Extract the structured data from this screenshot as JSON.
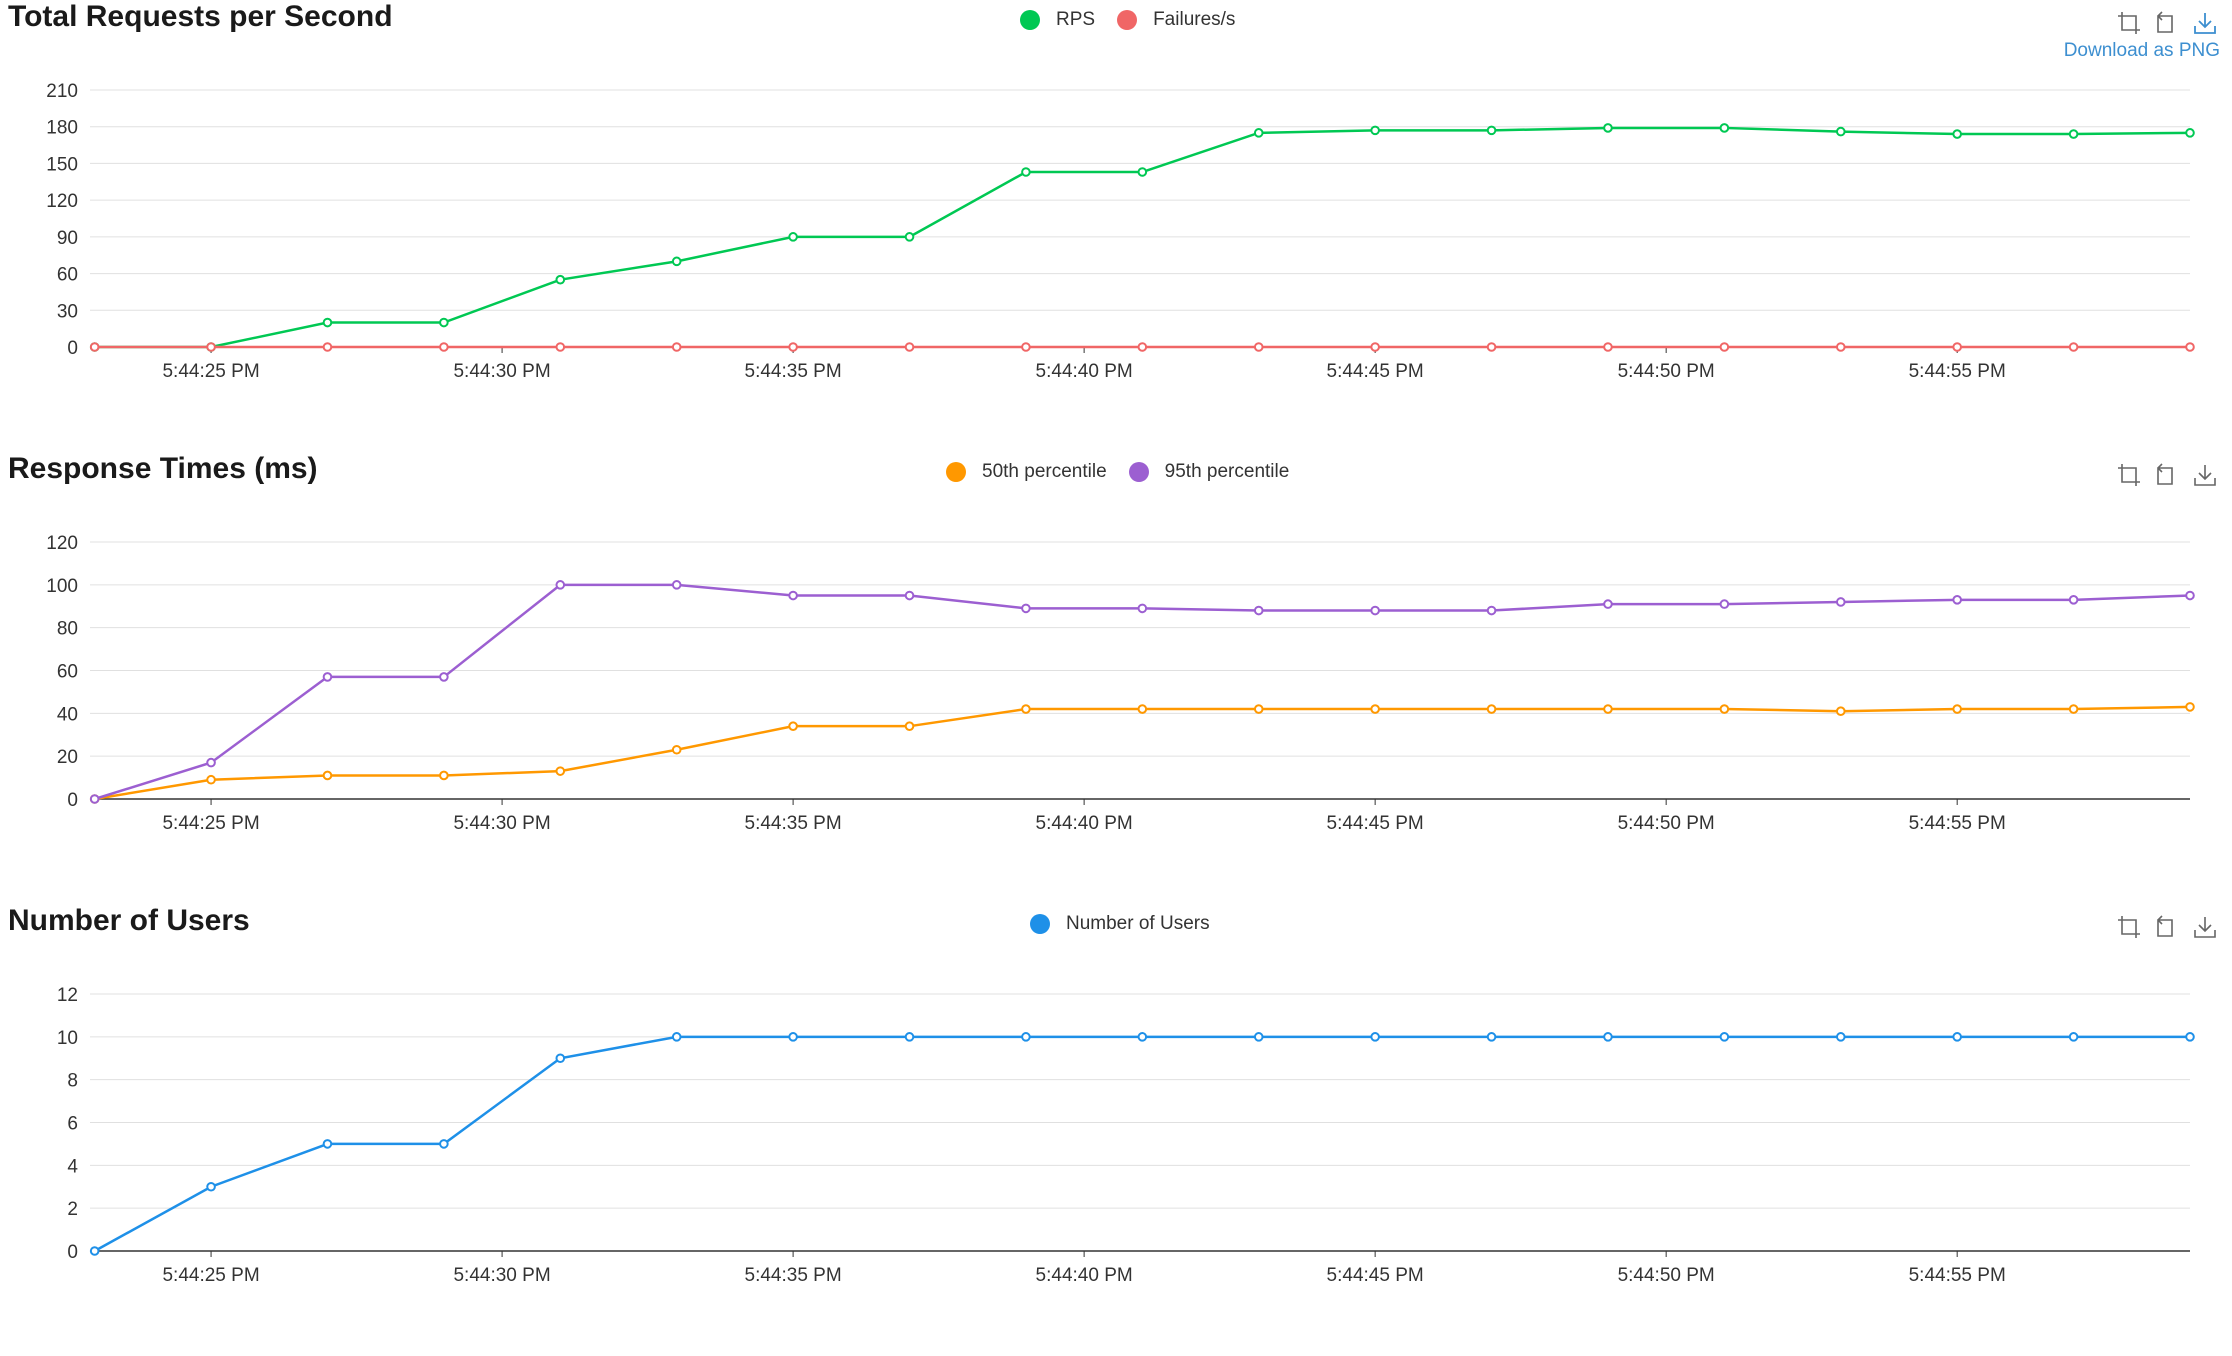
{
  "toolbox": {
    "download_tooltip": "Download as PNG"
  },
  "time_labels": [
    "5:44:25 PM",
    "5:44:30 PM",
    "5:44:35 PM",
    "5:44:40 PM",
    "5:44:45 PM",
    "5:44:50 PM",
    "5:44:55 PM"
  ],
  "chart_data": [
    {
      "type": "line",
      "title": "Total Requests per Second",
      "xlabel": "",
      "ylabel": "",
      "x": [
        "5:44:23",
        "5:44:25",
        "5:44:27",
        "5:44:29",
        "5:44:31",
        "5:44:33",
        "5:44:35",
        "5:44:37",
        "5:44:39",
        "5:44:41",
        "5:44:43",
        "5:44:45",
        "5:44:47",
        "5:44:49",
        "5:44:51",
        "5:44:53",
        "5:44:55",
        "5:44:57",
        "5:44:59"
      ],
      "x_tick_labels": [
        "5:44:25 PM",
        "5:44:30 PM",
        "5:44:35 PM",
        "5:44:40 PM",
        "5:44:45 PM",
        "5:44:50 PM",
        "5:44:55 PM"
      ],
      "y_ticks": [
        0,
        30,
        60,
        90,
        120,
        150,
        180,
        210
      ],
      "ylim": [
        0,
        210
      ],
      "grid": true,
      "legend_position": "top-center",
      "series": [
        {
          "name": "RPS",
          "color": "#00c853",
          "values": [
            0,
            0,
            20,
            20,
            55,
            70,
            90,
            90,
            143,
            143,
            175,
            177,
            177,
            179,
            179,
            176,
            174,
            174,
            175
          ]
        },
        {
          "name": "Failures/s",
          "color": "#f06666",
          "values": [
            0,
            0,
            0,
            0,
            0,
            0,
            0,
            0,
            0,
            0,
            0,
            0,
            0,
            0,
            0,
            0,
            0,
            0,
            0
          ]
        }
      ]
    },
    {
      "type": "line",
      "title": "Response Times (ms)",
      "xlabel": "",
      "ylabel": "",
      "x": [
        "5:44:23",
        "5:44:25",
        "5:44:27",
        "5:44:29",
        "5:44:31",
        "5:44:33",
        "5:44:35",
        "5:44:37",
        "5:44:39",
        "5:44:41",
        "5:44:43",
        "5:44:45",
        "5:44:47",
        "5:44:49",
        "5:44:51",
        "5:44:53",
        "5:44:55",
        "5:44:57",
        "5:44:59"
      ],
      "x_tick_labels": [
        "5:44:25 PM",
        "5:44:30 PM",
        "5:44:35 PM",
        "5:44:40 PM",
        "5:44:45 PM",
        "5:44:50 PM",
        "5:44:55 PM"
      ],
      "y_ticks": [
        0,
        20,
        40,
        60,
        80,
        100,
        120
      ],
      "ylim": [
        0,
        120
      ],
      "grid": true,
      "legend_position": "top-center",
      "series": [
        {
          "name": "50th percentile",
          "color": "#ff9800",
          "values": [
            0,
            9,
            11,
            11,
            13,
            23,
            34,
            34,
            42,
            42,
            42,
            42,
            42,
            42,
            42,
            41,
            42,
            42,
            43
          ]
        },
        {
          "name": "95th percentile",
          "color": "#9c5fd1",
          "values": [
            0,
            17,
            57,
            57,
            100,
            100,
            95,
            95,
            89,
            89,
            88,
            88,
            88,
            91,
            91,
            92,
            93,
            93,
            95
          ]
        }
      ]
    },
    {
      "type": "line",
      "title": "Number of Users",
      "xlabel": "",
      "ylabel": "",
      "x": [
        "5:44:23",
        "5:44:25",
        "5:44:27",
        "5:44:29",
        "5:44:31",
        "5:44:33",
        "5:44:35",
        "5:44:37",
        "5:44:39",
        "5:44:41",
        "5:44:43",
        "5:44:45",
        "5:44:47",
        "5:44:49",
        "5:44:51",
        "5:44:53",
        "5:44:55",
        "5:44:57",
        "5:44:59"
      ],
      "x_tick_labels": [
        "5:44:25 PM",
        "5:44:30 PM",
        "5:44:35 PM",
        "5:44:40 PM",
        "5:44:45 PM",
        "5:44:50 PM",
        "5:44:55 PM"
      ],
      "y_ticks": [
        0,
        2,
        4,
        6,
        8,
        10,
        12
      ],
      "ylim": [
        0,
        12
      ],
      "grid": true,
      "legend_position": "top-center",
      "series": [
        {
          "name": "Number of Users",
          "color": "#1e90e8",
          "values": [
            0,
            3,
            5,
            5,
            9,
            10,
            10,
            10,
            10,
            10,
            10,
            10,
            10,
            10,
            10,
            10,
            10,
            10,
            10
          ]
        }
      ]
    }
  ]
}
